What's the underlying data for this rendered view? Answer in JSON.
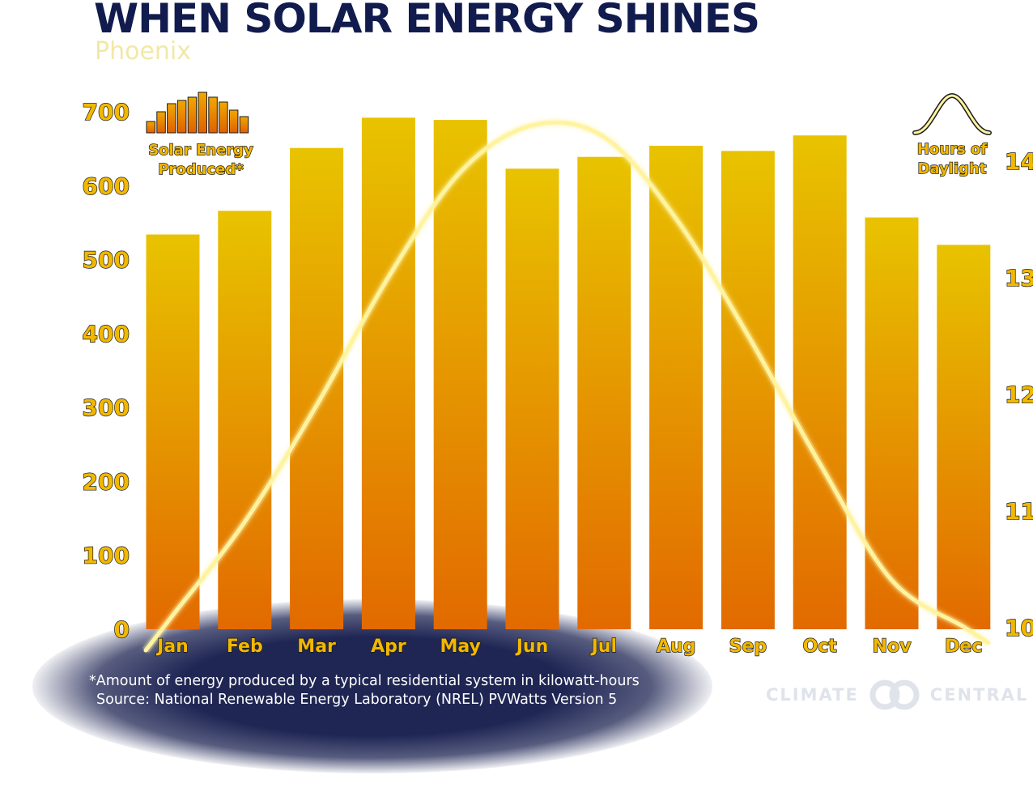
{
  "title": "WHEN SOLAR ENERGY SHINES",
  "subtitle": "Phoenix",
  "chart_data": {
    "type": "bar",
    "categories": [
      "Jan",
      "Feb",
      "Mar",
      "Apr",
      "May",
      "Jun",
      "Jul",
      "Aug",
      "Sep",
      "Oct",
      "Nov",
      "Dec"
    ],
    "series": [
      {
        "name": "Solar Energy Produced*",
        "type": "bar",
        "axis": "left",
        "values": [
          534,
          566,
          651,
          692,
          689,
          623,
          639,
          654,
          647,
          668,
          557,
          520
        ]
      },
      {
        "name": "Hours of Daylight",
        "type": "line",
        "axis": "right",
        "values": [
          10.1,
          10.9,
          11.9,
          13.0,
          13.9,
          14.3,
          14.2,
          13.5,
          12.5,
          11.4,
          10.4,
          10.0
        ]
      }
    ],
    "ylim_left": [
      0,
      700
    ],
    "yticks_left": [
      "0",
      "100",
      "200",
      "300",
      "400",
      "500",
      "600",
      "700"
    ],
    "ylim_right": [
      10,
      14
    ],
    "yticks_right": [
      "10",
      "11",
      "12",
      "13",
      "14"
    ],
    "legend": {
      "left_label_line1": "Solar Energy",
      "left_label_line2": "Produced*",
      "right_label_line1": "Hours of",
      "right_label_line2": "Daylight"
    },
    "grid": false
  },
  "colors": {
    "bar_top": "#e8c300",
    "bar_bottom": "#e26a00",
    "line": "#fff3a0",
    "title": "#111b4d",
    "tick_fill": "#f2b800"
  },
  "footnote": "*Amount of energy produced by a typical residential system in kilowatt-hours",
  "source": "Source: National Renewable Energy Laboratory (NREL) PVWatts Version 5",
  "logo": {
    "left": "CLIMATE",
    "right": "CENTRAL"
  }
}
